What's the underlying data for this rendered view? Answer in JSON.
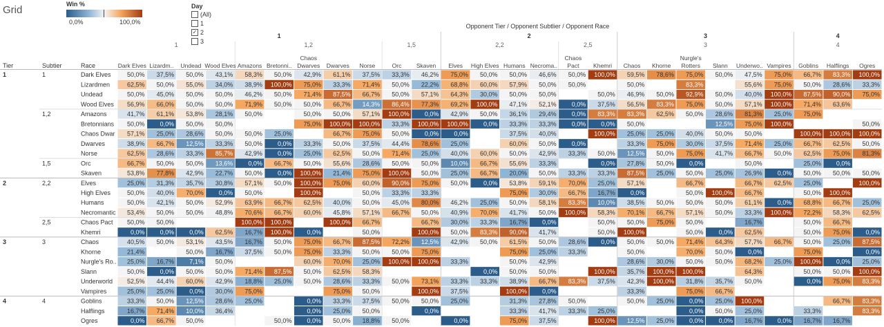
{
  "title": "Grid",
  "legend": {
    "title": "Win %",
    "min_label": "0,0%",
    "max_label": "100,0%",
    "colors": [
      "#2b5c8a",
      "#f4f4f4",
      "#a33c11"
    ]
  },
  "day_filter": {
    "title": "Day",
    "options": [
      {
        "label": "(All)",
        "checked": false
      },
      {
        "label": "1",
        "checked": false
      },
      {
        "label": "2",
        "checked": true
      },
      {
        "label": "3",
        "checked": false
      }
    ]
  },
  "header": {
    "column_caption": "Opponent Tier / Opponent Subtlier / Opponent Race",
    "row_headers": [
      "Tier",
      "Subtier",
      "Race"
    ]
  },
  "chart_data": {
    "type": "heatmap",
    "column_groups": [
      {
        "tier": "1",
        "subtiers": [
          {
            "name": "1",
            "races": [
              "Dark Elves",
              "Lizardm..",
              "Undead",
              "Wood Elves"
            ]
          },
          {
            "name": "1,2",
            "races": [
              "Amazons",
              "Bretonni..",
              "Chaos Dwarves",
              "Dwarves",
              "Norse"
            ]
          },
          {
            "name": "1,5",
            "races": [
              "Orc",
              "Skaven"
            ]
          }
        ]
      },
      {
        "tier": "2",
        "subtiers": [
          {
            "name": "2,2",
            "races": [
              "Elves",
              "High Elves",
              "Humans",
              "Necroma.."
            ]
          },
          {
            "name": "2,5",
            "races": [
              "Chaos Pact",
              "Khemri"
            ]
          }
        ]
      },
      {
        "tier": "3",
        "subtiers": [
          {
            "name": "3",
            "races": [
              "Chaos",
              "Khorne",
              "Nurgle's Rotters",
              "Slann",
              "Underwo..",
              "Vampires"
            ]
          }
        ]
      },
      {
        "tier": "4",
        "subtiers": [
          {
            "name": "4",
            "races": [
              "Goblins",
              "Halflings",
              "Ogres"
            ]
          }
        ]
      }
    ],
    "row_groups": [
      {
        "tier": "1",
        "subtiers": [
          {
            "name": "1",
            "races": [
              "Dark Elves",
              "Lizardmen",
              "Undead",
              "Wood Elves"
            ]
          },
          {
            "name": "1,2",
            "races": [
              "Amazons",
              "Bretonnians",
              "Chaos Dwar",
              "Dwarves",
              "Norse"
            ]
          },
          {
            "name": "1,5",
            "races": [
              "Orc",
              "Skaven"
            ]
          }
        ]
      },
      {
        "tier": "2",
        "subtiers": [
          {
            "name": "2,2",
            "races": [
              "Elves",
              "High Elves",
              "Humans",
              "Necromantic"
            ]
          },
          {
            "name": "2,5",
            "races": [
              "Chaos Pact",
              "Khemri"
            ]
          }
        ]
      },
      {
        "tier": "3",
        "subtiers": [
          {
            "name": "3",
            "races": [
              "Chaos",
              "Khorne",
              "Nurgle's Ro..",
              "Slann",
              "Underworld",
              "Vampires"
            ]
          }
        ]
      },
      {
        "tier": "4",
        "subtiers": [
          {
            "name": "4",
            "races": [
              "Goblins",
              "Halflings",
              "Ogres"
            ]
          }
        ]
      }
    ],
    "values": [
      [
        50,
        37.5,
        50,
        43.1,
        58.3,
        50,
        42.9,
        61.1,
        37.5,
        33.3,
        46.2,
        75,
        50,
        50,
        46.6,
        50,
        100,
        59.5,
        78.6,
        75,
        50,
        47.5,
        75,
        66.7,
        83.3,
        100
      ],
      [
        62.5,
        50,
        55,
        34,
        38.9,
        100,
        75,
        33.3,
        71.4,
        50,
        22.2,
        68.8,
        60,
        57.9,
        50,
        50,
        null,
        50,
        null,
        83.3,
        null,
        55.6,
        75,
        50,
        28.6,
        33.3
      ],
      [
        50,
        45,
        50,
        50,
        46.2,
        50,
        71.4,
        87.5,
        66.7,
        50,
        57.1,
        64.3,
        30,
        50,
        50,
        null,
        50,
        46.9,
        50,
        92.9,
        50,
        40,
        100,
        87.5,
        90,
        75
      ],
      [
        56.9,
        66,
        50,
        50,
        71.9,
        50,
        50,
        66.7,
        14.3,
        86.4,
        77.3,
        69.2,
        100,
        47.1,
        52.1,
        0,
        37.5,
        56.5,
        83.3,
        75,
        50,
        57.1,
        100,
        71.4,
        63.6,
        null
      ],
      [
        41.7,
        61.1,
        53.8,
        28.1,
        50,
        null,
        50,
        50,
        57.1,
        100,
        0,
        42.9,
        50,
        36.1,
        29.4,
        0,
        83.3,
        83.3,
        62.5,
        50,
        28.6,
        81.3,
        25,
        75,
        null,
        null
      ],
      [
        50,
        0,
        50,
        50,
        null,
        null,
        75,
        100,
        100,
        33.3,
        100,
        100,
        0,
        33.3,
        33.3,
        0,
        0,
        50,
        null,
        null,
        12.5,
        75,
        100,
        null,
        null,
        50
      ],
      [
        57.1,
        25,
        28.6,
        50,
        50,
        25,
        null,
        66.7,
        75,
        50,
        0,
        0,
        null,
        37.5,
        40,
        null,
        100,
        25,
        25,
        40,
        50,
        50,
        null,
        100,
        100,
        100
      ],
      [
        38.9,
        66.7,
        12.5,
        33.3,
        50,
        0,
        33.3,
        50,
        37.5,
        44.4,
        78.6,
        25,
        null,
        60,
        50,
        0,
        null,
        33.3,
        75,
        30,
        37.5,
        71.4,
        25,
        66.7,
        62.5,
        50
      ],
      [
        62.5,
        28.6,
        33.3,
        85.7,
        42.9,
        0,
        25,
        62.5,
        50,
        71.4,
        25,
        40,
        60,
        50,
        42.9,
        33.3,
        50,
        12.5,
        50,
        75,
        41.7,
        66.7,
        50,
        62.5,
        75,
        81.3
      ],
      [
        66.7,
        50,
        50,
        13.6,
        0,
        66.7,
        50,
        55.6,
        28.6,
        50,
        50,
        10,
        66.7,
        55.6,
        33.3,
        null,
        0,
        27.8,
        50,
        0,
        null,
        50,
        null,
        25,
        0,
        null
      ],
      [
        53.8,
        77.8,
        42.9,
        22.7,
        50,
        0,
        100,
        21.4,
        75,
        100,
        50,
        25,
        66.7,
        20,
        50,
        33.3,
        33.3,
        87.5,
        25,
        50,
        25,
        26.9,
        0,
        50,
        50,
        50
      ],
      [
        25,
        31.3,
        35.7,
        30.8,
        57.1,
        50,
        100,
        75,
        60,
        90,
        75,
        50,
        0,
        53.8,
        59.1,
        70,
        25,
        57.1,
        null,
        66.7,
        null,
        66.7,
        62.5,
        25,
        null,
        100
      ],
      [
        50,
        40,
        70,
        0,
        50,
        null,
        100,
        null,
        50,
        33.3,
        33.3,
        null,
        null,
        75,
        30,
        66.7,
        16.7,
        0,
        null,
        50,
        100,
        66.7,
        null,
        50,
        100,
        null
      ],
      [
        50,
        42.1,
        50,
        52.9,
        63.9,
        66.7,
        62.5,
        40,
        50,
        45,
        80,
        46.2,
        25,
        50,
        58.1,
        83.3,
        10,
        38.5,
        50,
        50,
        50,
        61.1,
        0,
        68.8,
        66.7,
        25
      ],
      [
        53.4,
        50,
        50,
        48.8,
        70.6,
        66.7,
        60,
        45.8,
        57.1,
        66.7,
        50,
        40.9,
        70,
        41.7,
        50,
        100,
        58.3,
        70.1,
        66.7,
        57.1,
        50,
        33.3,
        100,
        72.2,
        58.3,
        62.5
      ],
      [
        50,
        50,
        null,
        null,
        100,
        100,
        null,
        100,
        66.7,
        null,
        66.7,
        30,
        33.3,
        16.7,
        0,
        null,
        50,
        50,
        75,
        50,
        null,
        16.7,
        null,
        50,
        66.7,
        null
      ],
      [
        0,
        0,
        0,
        62.5,
        16.7,
        100,
        0,
        null,
        50,
        null,
        100,
        50,
        83.3,
        90,
        41.7,
        null,
        50,
        100,
        null,
        50,
        0,
        62.5,
        null,
        50,
        75,
        0
      ],
      [
        40.5,
        50,
        53.1,
        43.5,
        16.7,
        50,
        75,
        66.7,
        87.5,
        72.2,
        12.5,
        42.9,
        50,
        61.5,
        50,
        28.6,
        0,
        50,
        50,
        71.4,
        64.3,
        57.7,
        66.7,
        50,
        25,
        87.5
      ],
      [
        21.4,
        null,
        50,
        16.7,
        37.5,
        50,
        75,
        33.3,
        50,
        50,
        75,
        null,
        null,
        75,
        25,
        33.3,
        null,
        50,
        null,
        70,
        50,
        0,
        null,
        75,
        null,
        0
      ],
      [
        25,
        16.7,
        7.1,
        50,
        null,
        null,
        60,
        70,
        25,
        100,
        100,
        33.3,
        null,
        50,
        42.9,
        null,
        null,
        28.6,
        30,
        50,
        50,
        68.2,
        25,
        100,
        0,
        25
      ],
      [
        50,
        0,
        50,
        50,
        71.4,
        87.5,
        50,
        62.5,
        58.3,
        null,
        null,
        null,
        0,
        50,
        50,
        null,
        100,
        35.7,
        100,
        100,
        null,
        64.3,
        null,
        50,
        50,
        100
      ],
      [
        52.5,
        44.4,
        60,
        42.9,
        18.8,
        25,
        50,
        28.6,
        33.3,
        50,
        73.1,
        33.3,
        33.3,
        38.9,
        66.7,
        83.3,
        37.5,
        42.3,
        100,
        31.8,
        35.7,
        50,
        null,
        0,
        75,
        83.3
      ],
      [
        25,
        25,
        0,
        30,
        75,
        null,
        null,
        75,
        50,
        null,
        100,
        37.5,
        null,
        100,
        0,
        null,
        null,
        33.3,
        null,
        75,
        66.7,
        null,
        null,
        null,
        null,
        null
      ],
      [
        33.3,
        50,
        12.5,
        28.6,
        25,
        null,
        0,
        33.3,
        37.5,
        50,
        50,
        25,
        null,
        31.3,
        27.8,
        50,
        null,
        50,
        25,
        0,
        25,
        100,
        null,
        null,
        66.7,
        83.3
      ],
      [
        16.7,
        71.4,
        10,
        36.4,
        null,
        null,
        0,
        25,
        50,
        null,
        0,
        null,
        null,
        33.3,
        41.7,
        33.3,
        25,
        null,
        null,
        0,
        50,
        25,
        null,
        33.3,
        null,
        83.3
      ],
      [
        0,
        66.7,
        50,
        null,
        null,
        50,
        0,
        50,
        18.8,
        50,
        null,
        0,
        null,
        75,
        37.5,
        null,
        100,
        12.5,
        25,
        0,
        0,
        16.7,
        0,
        16.7,
        16.7,
        null
      ]
    ],
    "value_format": "percent, 1 decimal, comma separator",
    "color_scale": {
      "min": 0,
      "mid": 50,
      "max": 100,
      "low_color": "#2b5c8a",
      "mid_color": "#f4f4f4",
      "high_color": "#a33c11"
    }
  }
}
